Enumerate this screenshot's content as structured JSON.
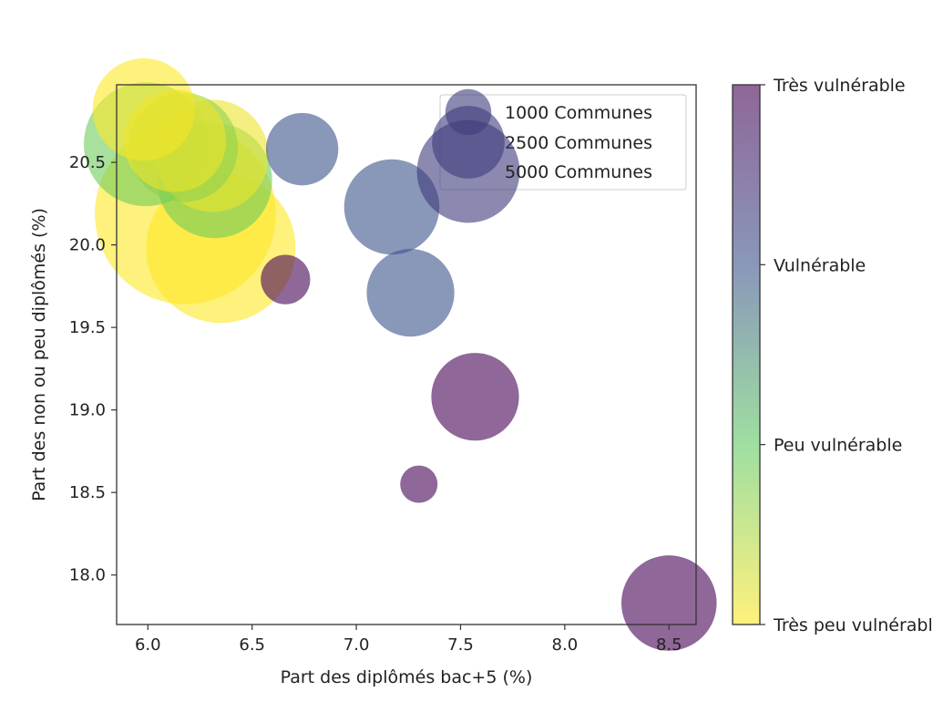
{
  "chart_data": {
    "type": "scatter",
    "title": "",
    "xlabel": "Part des diplômés bac+5 (%)",
    "ylabel": "Part des non ou peu diplômés (%)",
    "xlim": [
      5.85,
      8.63
    ],
    "ylim": [
      17.7,
      20.97
    ],
    "xticks": [
      6.0,
      6.5,
      7.0,
      7.5,
      8.0,
      8.5
    ],
    "xtick_labels": [
      "6.0",
      "6.5",
      "7.0",
      "7.5",
      "8.0",
      "8.5"
    ],
    "yticks": [
      18.0,
      18.5,
      19.0,
      19.5,
      20.0,
      20.5
    ],
    "ytick_labels": [
      "18.0",
      "18.5",
      "19.0",
      "19.5",
      "20.0",
      "20.5"
    ],
    "size_variable": "Communes",
    "color_variable": "vulnérabilité (0 = très peu vulnérable, 3 = très vulnérable)",
    "points": [
      {
        "x": 5.98,
        "y": 20.82,
        "communes": 1500,
        "vuln": 0.0
      },
      {
        "x": 5.99,
        "y": 20.61,
        "communes": 2200,
        "vuln": 0.9
      },
      {
        "x": 6.13,
        "y": 20.63,
        "communes": 1500,
        "vuln": 0.1
      },
      {
        "x": 6.17,
        "y": 20.59,
        "communes": 1700,
        "vuln": 0.7
      },
      {
        "x": 6.31,
        "y": 20.54,
        "communes": 1800,
        "vuln": 0.1
      },
      {
        "x": 6.32,
        "y": 20.39,
        "communes": 1900,
        "vuln": 0.9
      },
      {
        "x": 6.18,
        "y": 20.19,
        "communes": 4700,
        "vuln": 0.0
      },
      {
        "x": 6.35,
        "y": 19.98,
        "communes": 3200,
        "vuln": 0.0
      },
      {
        "x": 6.74,
        "y": 20.58,
        "communes": 750,
        "vuln": 2.0
      },
      {
        "x": 7.17,
        "y": 20.23,
        "communes": 1300,
        "vuln": 2.0
      },
      {
        "x": 7.26,
        "y": 19.71,
        "communes": 1100,
        "vuln": 2.0
      },
      {
        "x": 6.66,
        "y": 19.79,
        "communes": 350,
        "vuln": 3.0
      },
      {
        "x": 7.57,
        "y": 19.08,
        "communes": 1100,
        "vuln": 3.0
      },
      {
        "x": 7.3,
        "y": 18.55,
        "communes": 200,
        "vuln": 3.0
      },
      {
        "x": 8.5,
        "y": 17.83,
        "communes": 1300,
        "vuln": 3.0
      }
    ],
    "legend": {
      "placement": "top-right",
      "entries": [
        {
          "label": "1000 Communes",
          "communes": 1000
        },
        {
          "label": "2500 Communes",
          "communes": 2500
        },
        {
          "label": "5000 Communes",
          "communes": 5000
        }
      ]
    },
    "colorbar": {
      "range": [
        0,
        3
      ],
      "ticks": [
        {
          "value": 3,
          "label": "Très vulnérable"
        },
        {
          "value": 2,
          "label": "Vulnérable"
        },
        {
          "value": 1,
          "label": "Peu vulnérable"
        },
        {
          "value": 0,
          "label": "Très peu vulnérable"
        }
      ]
    },
    "colors": [
      "#fde725",
      "#5ec962",
      "#3b528b",
      "#440154"
    ],
    "marker_alpha": 0.6
  }
}
